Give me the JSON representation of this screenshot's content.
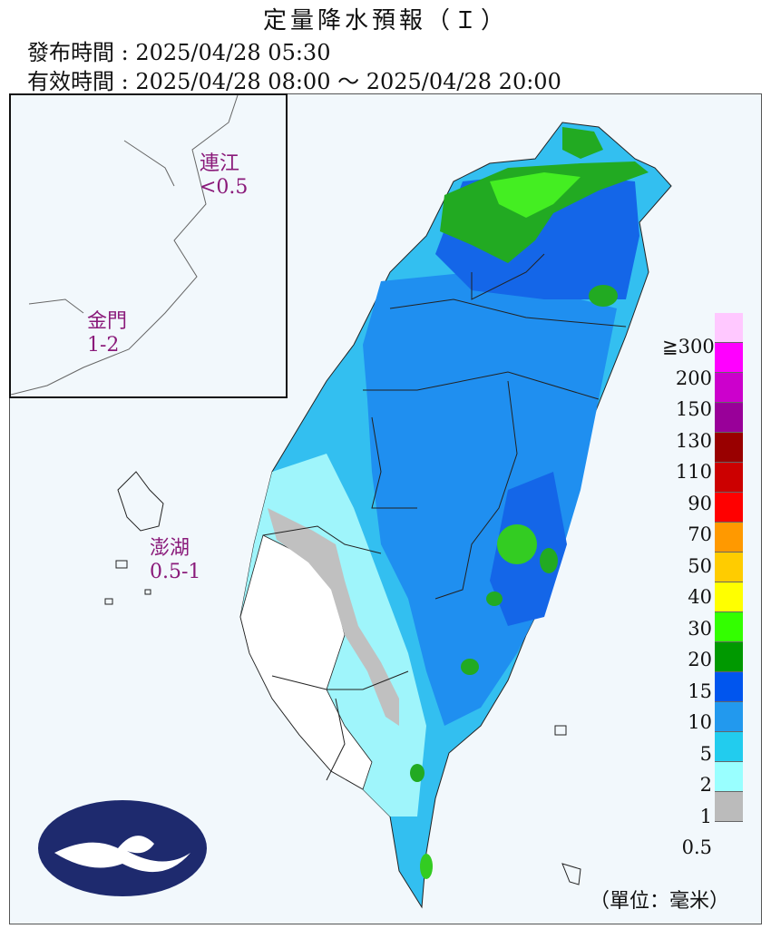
{
  "header": {
    "title": "定量降水預報（Ｉ）",
    "issue_time": "發布時間 : 2025/04/28 05:30",
    "valid_time": "有效時間 : 2025/04/28 08:00 ～ 2025/04/28 20:00"
  },
  "places": {
    "matsu_name": "連江",
    "matsu_value": "<0.5",
    "kinmen_name": "金門",
    "kinmen_value": "1-2",
    "penghu_name": "澎湖",
    "penghu_value": "0.5-1"
  },
  "legend": {
    "top_label": "≧300",
    "labels": [
      "200",
      "150",
      "130",
      "110",
      "90",
      "70",
      "50",
      "40",
      "30",
      "20",
      "15",
      "10",
      "5",
      "2",
      "1",
      "0.5"
    ],
    "colors": [
      "#ffc8ff",
      "#ff00ff",
      "#cc00cc",
      "#990099",
      "#990000",
      "#cc0000",
      "#ff0000",
      "#ff9900",
      "#ffcc00",
      "#ffff00",
      "#33ff00",
      "#009900",
      "#0055ee",
      "#2299ee",
      "#22ccee",
      "#99ffff",
      "#bbbbbb"
    ],
    "unit": "（單位：毫米）"
  }
}
